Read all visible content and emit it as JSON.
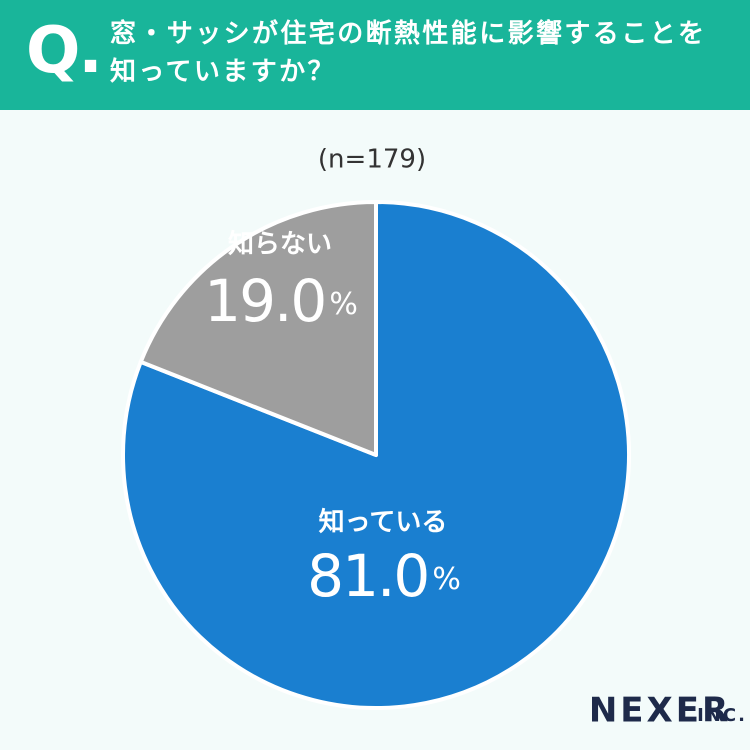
{
  "header": {
    "question_label": "Q.",
    "title": "窓・サッシが住宅の断熱性能に影響することを知っていますか？"
  },
  "chart_data": {
    "type": "pie",
    "subtitle": "(n=179)",
    "categories": [
      "知っている",
      "知らない"
    ],
    "values": [
      81.0,
      19.0
    ],
    "value_labels": [
      "81.0%",
      "19.0%"
    ],
    "colors": [
      "#1a7fd0",
      "#9e9e9e"
    ]
  },
  "footer": {
    "logo": "NEXER",
    "logo_suffix": "INC."
  }
}
